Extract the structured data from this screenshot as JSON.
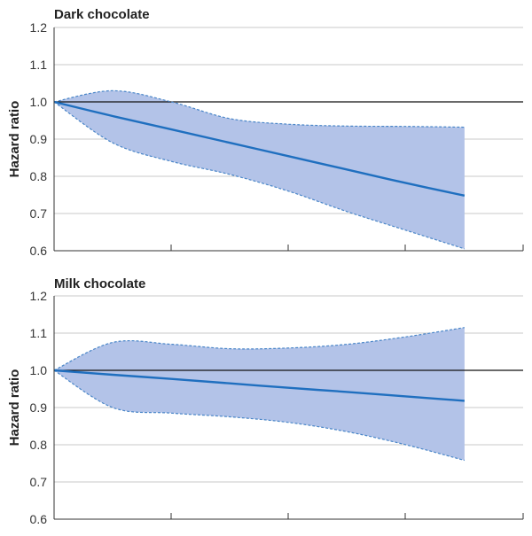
{
  "chart_data": [
    {
      "type": "area",
      "title": "Dark chocolate",
      "xlabel": "",
      "ylabel": "Hazard ratio",
      "ylim": [
        0.6,
        1.2
      ],
      "yticks": [
        0.6,
        0.7,
        0.8,
        0.9,
        1.0,
        1.1,
        1.2
      ],
      "ytick_labels": [
        "0.6",
        "0.7",
        "0.8",
        "0.9",
        "1.0",
        "1.1",
        "1.2"
      ],
      "reference_line": 1.0,
      "grid": true,
      "colors": {
        "line": "#1f6fbf",
        "band": "#b3c3e8",
        "bound": "#4a86c8",
        "reference": "#111111",
        "grid": "#c8c8c8"
      },
      "x": [
        0,
        0.5,
        1.0,
        1.5,
        2.0,
        2.5,
        3.0,
        3.5
      ],
      "estimate": [
        1.0,
        0.962,
        0.926,
        0.89,
        0.854,
        0.818,
        0.782,
        0.748
      ],
      "lower": [
        1.0,
        0.89,
        0.84,
        0.805,
        0.76,
        0.705,
        0.655,
        0.605
      ],
      "upper": [
        1.0,
        1.03,
        1.0,
        0.955,
        0.94,
        0.935,
        0.934,
        0.932
      ]
    },
    {
      "type": "area",
      "title": "Milk chocolate",
      "xlabel": "",
      "ylabel": "Hazard ratio",
      "ylim": [
        0.6,
        1.2
      ],
      "yticks": [
        0.6,
        0.7,
        0.8,
        0.9,
        1.0,
        1.1,
        1.2
      ],
      "ytick_labels": [
        "0.6",
        "0.7",
        "0.8",
        "0.9",
        "1.0",
        "1.1",
        "1.2"
      ],
      "reference_line": 1.0,
      "grid": true,
      "colors": {
        "line": "#1f6fbf",
        "band": "#b3c3e8",
        "bound": "#4a86c8",
        "reference": "#111111",
        "grid": "#c8c8c8"
      },
      "x": [
        0,
        0.5,
        1.0,
        1.5,
        2.0,
        2.5,
        3.0,
        3.5
      ],
      "estimate": [
        1.0,
        0.988,
        0.977,
        0.965,
        0.953,
        0.942,
        0.93,
        0.918
      ],
      "lower": [
        1.0,
        0.9,
        0.885,
        0.875,
        0.86,
        0.835,
        0.8,
        0.758
      ],
      "upper": [
        1.0,
        1.075,
        1.07,
        1.058,
        1.06,
        1.07,
        1.09,
        1.115
      ]
    }
  ]
}
